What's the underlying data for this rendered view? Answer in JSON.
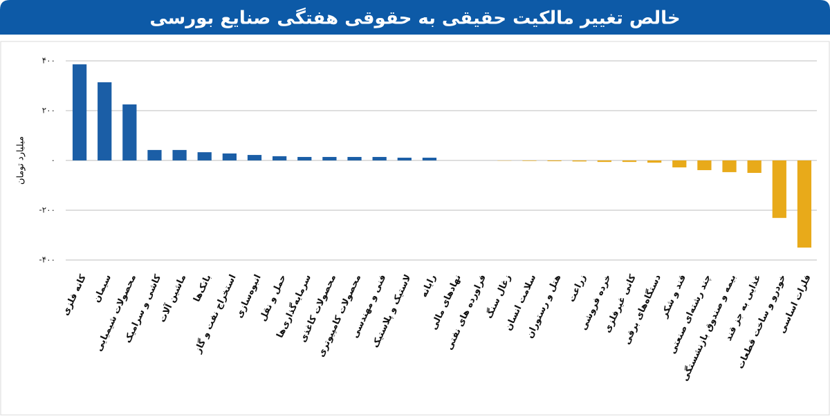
{
  "chart_data": {
    "type": "bar",
    "title": "خالص تغییر مالکیت حقیقی به حقوقی هفتگی صنایع بورسی",
    "y_label": "میلیارد تومان",
    "categories": [
      "کانه فلزی",
      "سیمان",
      "محصولات شیمیایی",
      "کاشی و سرامیک",
      "ماشین آلات",
      "بانک‌ها",
      "استخراج نفت و گاز",
      "انبوه‌سازی",
      "حمل و نقل",
      "سرمایه‌گذاری‌ها",
      "محصولات کاغذی",
      "محصولات کامپیوتری",
      "فنی و مهندسی",
      "لاستیک و پلاستیک",
      "رایانه",
      "نهادهای مالی",
      "فراورده های نفتی",
      "زغال سنگ",
      "سلامت انسان",
      "هتل و رستوران",
      "زراعت",
      "خرده فروشی",
      "کانی غیرفلزی",
      "دستگاه‌های برقی",
      "قند و شکر",
      "چند رشته‌ای صنعتی",
      "بیمه و صندوق بازنشستگی",
      "غذایی به جز قند",
      "خودرو و ساخت قطعات",
      "فلزات اساسی"
    ],
    "values": [
      386,
      314,
      225,
      42,
      42,
      33,
      28,
      22,
      17,
      14,
      14,
      14,
      14,
      11,
      11,
      0,
      0,
      -1,
      -2,
      -3,
      -4,
      -6,
      -6,
      -9,
      -28,
      -39,
      -47,
      -50,
      -231,
      -350
    ],
    "positive_color": "#1b5ea6",
    "negative_color": "#e8aa1a",
    "ylim": [
      -400,
      400
    ],
    "yticks": [
      {
        "value": -400,
        "label": "-۴۰۰"
      },
      {
        "value": -200,
        "label": "-۲۰۰"
      },
      {
        "value": 0,
        "label": "۰"
      },
      {
        "value": 200,
        "label": "۲۰۰"
      },
      {
        "value": 400,
        "label": "۴۰۰"
      }
    ],
    "grid": true
  }
}
